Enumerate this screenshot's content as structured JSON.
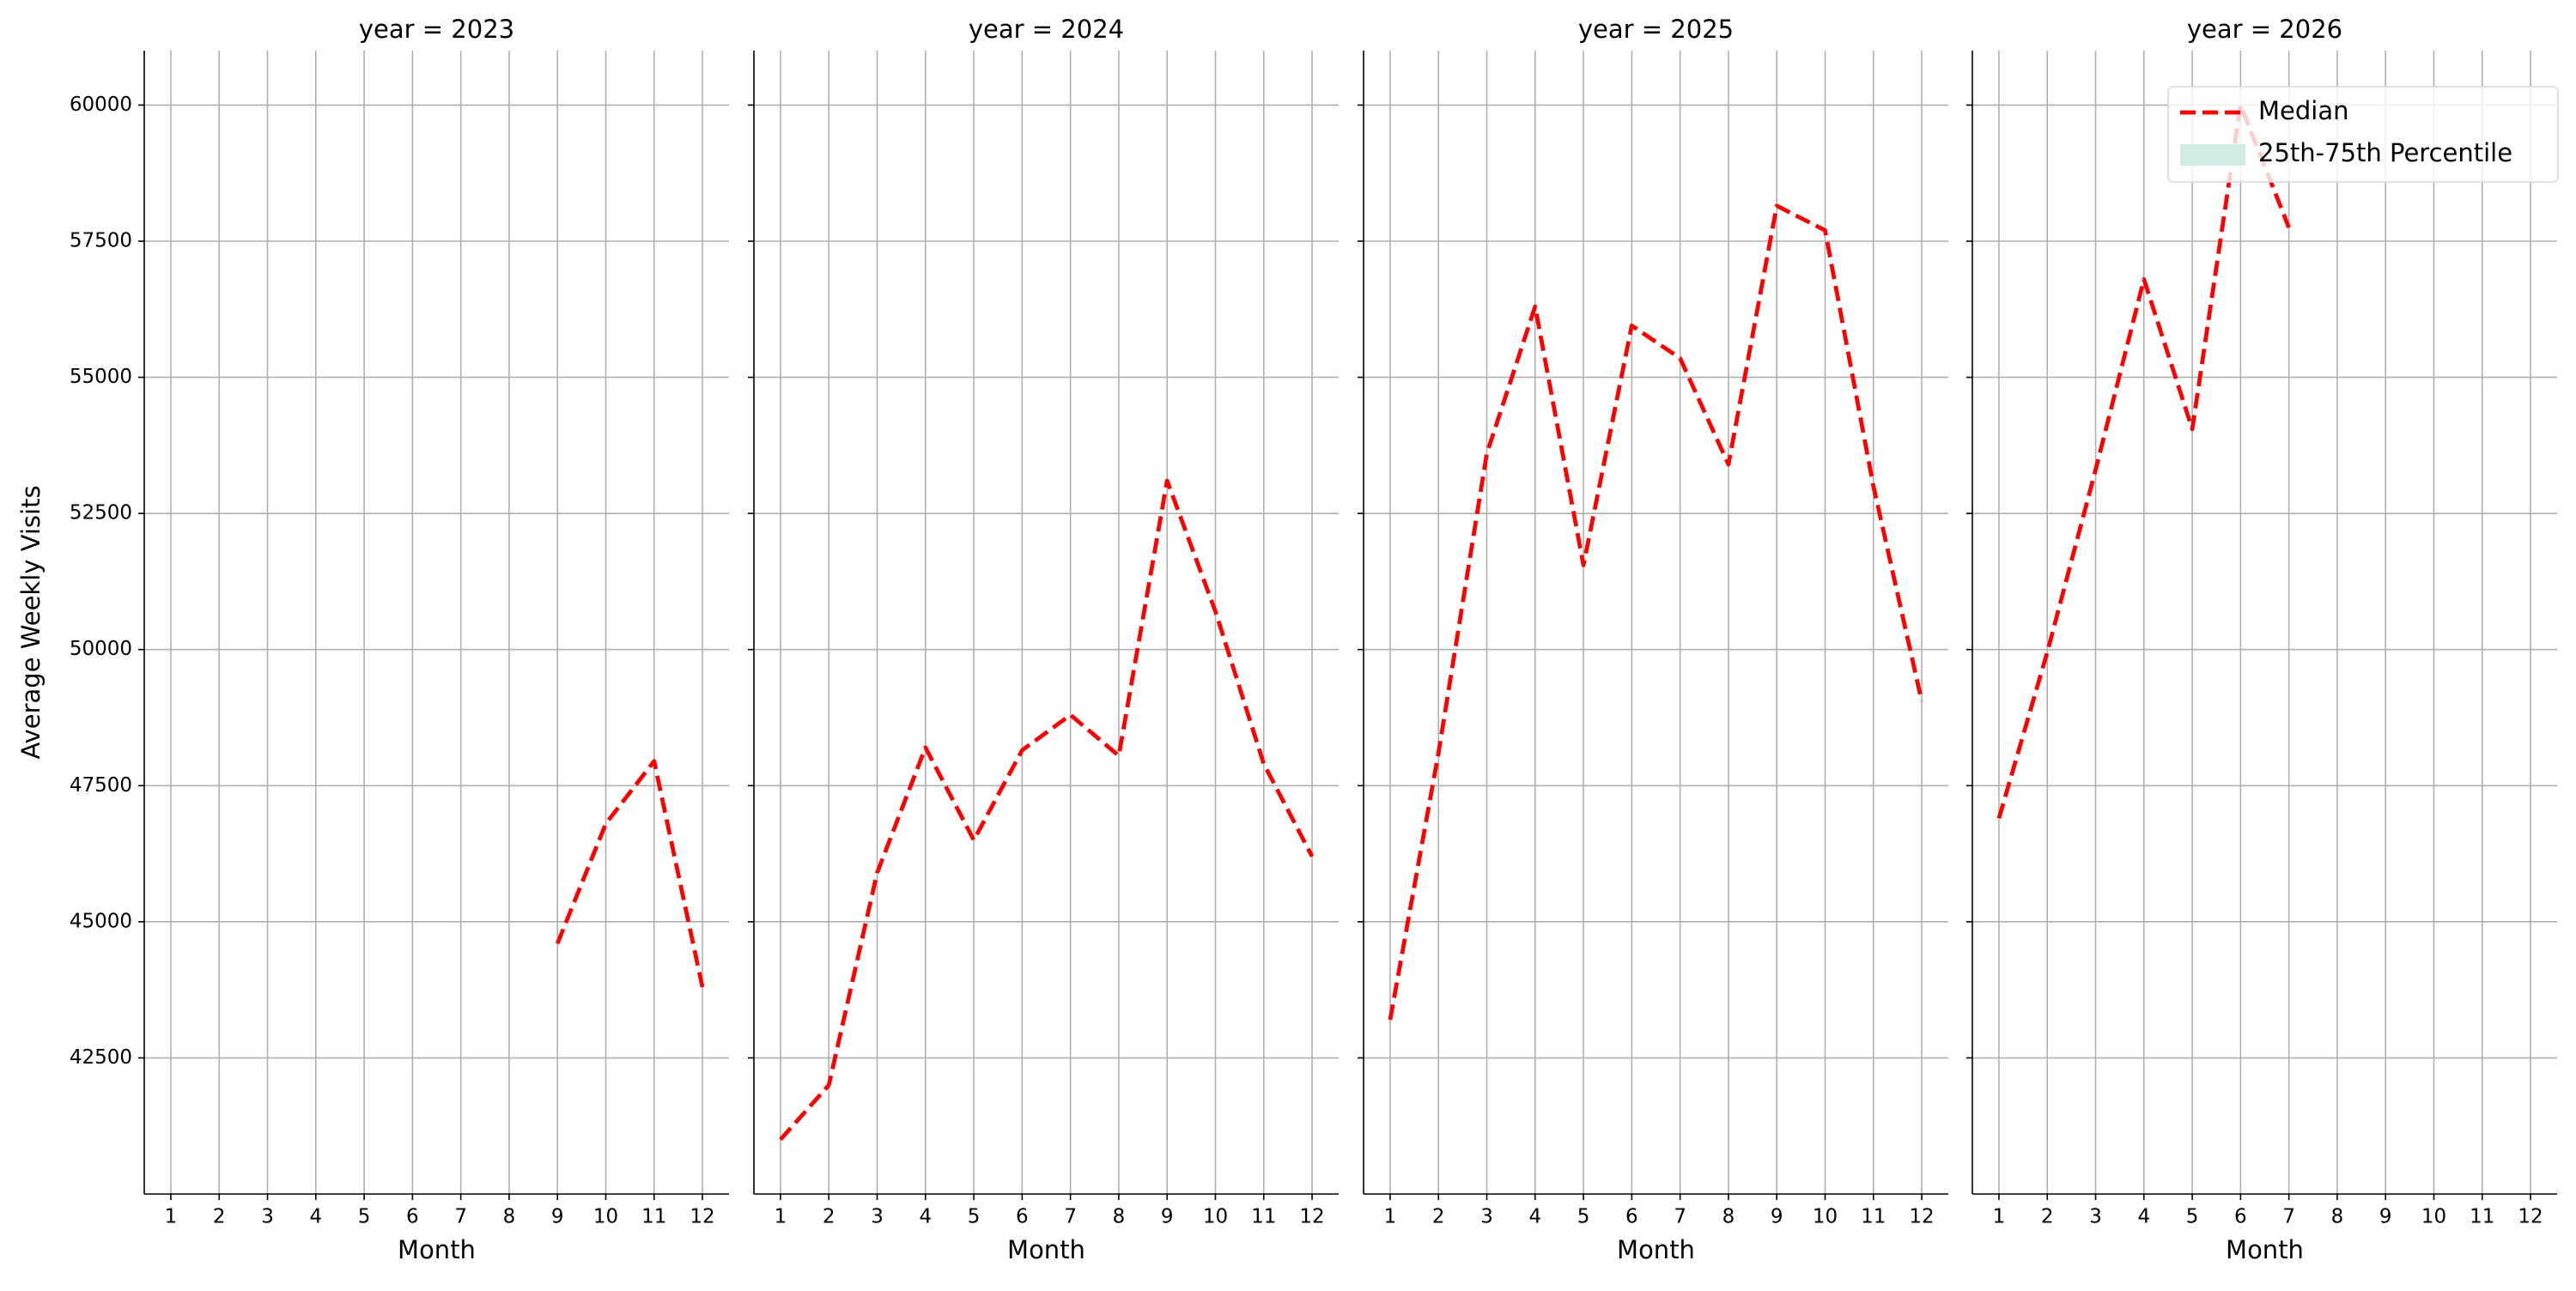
{
  "chart_data": [
    {
      "type": "line",
      "title": "year = 2023",
      "xlabel": "Month",
      "ylabel": "Average Weekly Visits",
      "x": [
        9,
        10,
        11,
        12
      ],
      "values": [
        44600,
        46800,
        47950,
        43800
      ],
      "color": "#ff0000",
      "xlim": [
        0.45,
        12.55
      ],
      "xticks": [
        1,
        2,
        3,
        4,
        5,
        6,
        7,
        8,
        9,
        10,
        11,
        12
      ],
      "ylim": [
        40000,
        61000
      ],
      "yticks": [
        42500,
        45000,
        47500,
        50000,
        52500,
        55000,
        57500,
        60000
      ],
      "grid": true
    },
    {
      "type": "line",
      "title": "year = 2024",
      "xlabel": "Month",
      "x": [
        1,
        2,
        3,
        4,
        5,
        6,
        7,
        8,
        9,
        10,
        11,
        12
      ],
      "values": [
        41000,
        42000,
        45900,
        48200,
        46500,
        48150,
        48800,
        48050,
        53100,
        50700,
        47900,
        46200
      ],
      "color": "#ff0000",
      "xlim": [
        0.45,
        12.55
      ],
      "xticks": [
        1,
        2,
        3,
        4,
        5,
        6,
        7,
        8,
        9,
        10,
        11,
        12
      ],
      "sharey": true,
      "grid": true
    },
    {
      "type": "line",
      "title": "year = 2025",
      "xlabel": "Month",
      "x": [
        1,
        2,
        3,
        4,
        5,
        6,
        7,
        8,
        9,
        10,
        11,
        12
      ],
      "values": [
        43200,
        48100,
        53600,
        56300,
        51550,
        55950,
        55350,
        53400,
        58150,
        57700,
        53000,
        49050
      ],
      "color": "#ff0000",
      "xlim": [
        0.45,
        12.55
      ],
      "xticks": [
        1,
        2,
        3,
        4,
        5,
        6,
        7,
        8,
        9,
        10,
        11,
        12
      ],
      "sharey": true,
      "grid": true
    },
    {
      "type": "line",
      "title": "year = 2026",
      "xlabel": "Month",
      "x": [
        1,
        2,
        3,
        4,
        5,
        6,
        7
      ],
      "values": [
        46900,
        49950,
        53300,
        56800,
        54050,
        60000,
        57750
      ],
      "color": "#ff0000",
      "xlim": [
        0.45,
        12.55
      ],
      "xticks": [
        1,
        2,
        3,
        4,
        5,
        6,
        7,
        8,
        9,
        10,
        11,
        12
      ],
      "sharey": true,
      "grid": true,
      "legend": [
        {
          "name": "Median",
          "color": "#ff0000"
        },
        {
          "name": "25th-75th Percentile",
          "color": "#d3ece2"
        }
      ]
    }
  ]
}
